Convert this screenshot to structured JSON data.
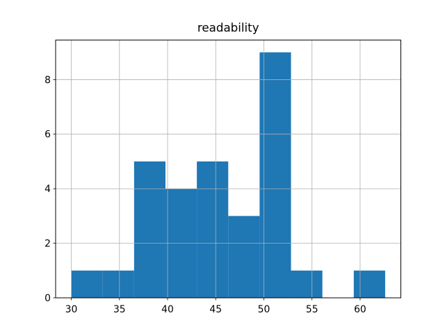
{
  "window": {
    "background_color": "#ffffff"
  },
  "chart_data": {
    "type": "bar",
    "subtype": "histogram",
    "title": "readability",
    "xlabel": "",
    "ylabel": "",
    "bin_edges": [
      30.0,
      33.26,
      36.52,
      39.78,
      43.04,
      46.3,
      49.56,
      52.82,
      56.08,
      59.34,
      62.6
    ],
    "counts": [
      1,
      1,
      5,
      4,
      5,
      3,
      9,
      1,
      0,
      1
    ],
    "x_ticks": [
      30,
      35,
      40,
      45,
      50,
      55,
      60
    ],
    "y_ticks": [
      0,
      2,
      4,
      6,
      8
    ],
    "xlim": [
      28.37,
      64.23
    ],
    "ylim": [
      0,
      9.45
    ],
    "grid": true,
    "legend": "none",
    "bar_color": "#1f77b4",
    "grid_color": "#b0b0b0",
    "axis_color": "#000000",
    "text_color": "#000000",
    "plot_background": "#ffffff"
  }
}
